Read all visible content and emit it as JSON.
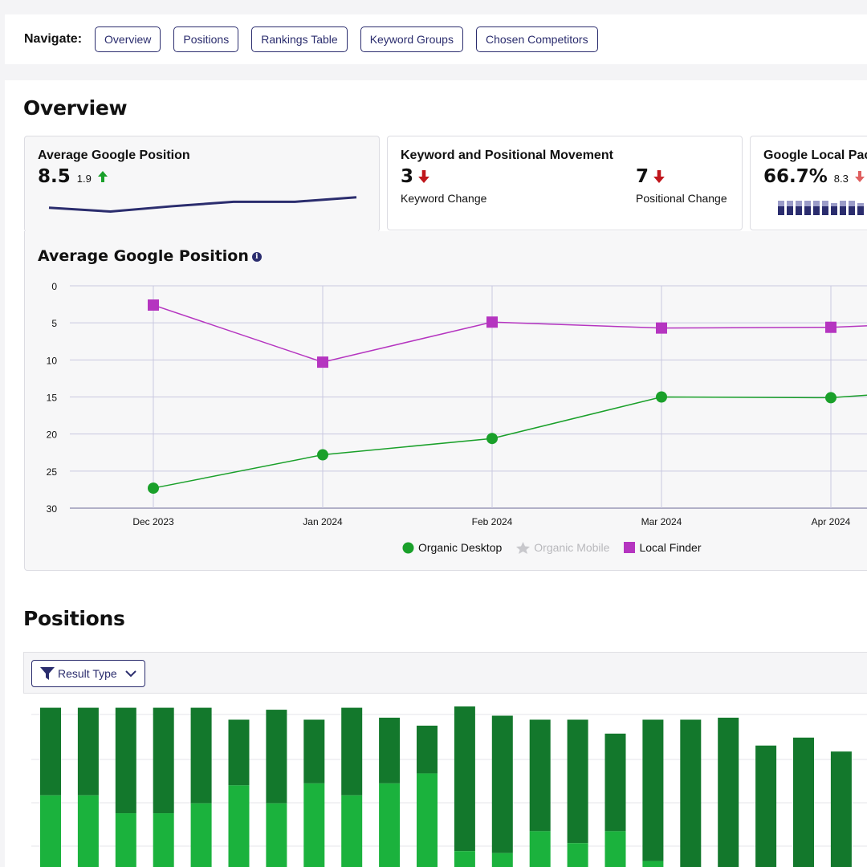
{
  "nav": {
    "label": "Navigate:",
    "items": [
      "Overview",
      "Positions",
      "Rankings Table",
      "Keyword Groups",
      "Chosen Competitors"
    ]
  },
  "overview": {
    "title": "Overview",
    "cards": {
      "avg": {
        "title": "Average Google Position",
        "value": "8.5",
        "delta": "1.9",
        "trend": "up",
        "sparkline": [
          7.8,
          8.3,
          7.6,
          7.0,
          7.0,
          6.4
        ]
      },
      "movement": {
        "title": "Keyword and Positional Movement",
        "keyword_value": "3",
        "keyword_label": "Keyword Change",
        "positional_value": "7",
        "positional_label": "Positional Change"
      },
      "local": {
        "title": "Google Local Pac",
        "value": "66.7%",
        "delta": "8.3"
      }
    }
  },
  "avg_chart": {
    "title": "Average Google Position",
    "info_icon": "info-icon",
    "legend": [
      {
        "name": "Organic Desktop",
        "color": "#1aa02a",
        "marker": "circle",
        "enabled": true
      },
      {
        "name": "Organic Mobile",
        "color": "#c8c8cc",
        "marker": "star",
        "enabled": false
      },
      {
        "name": "Local Finder",
        "color": "#b535c0",
        "marker": "square",
        "enabled": true
      }
    ]
  },
  "chart_data": {
    "type": "line",
    "x": [
      "Dec 2023",
      "Jan 2024",
      "Feb 2024",
      "Mar 2024",
      "Apr 2024"
    ],
    "ylim": [
      30,
      0
    ],
    "yticks": [
      0,
      5,
      10,
      15,
      20,
      25,
      30
    ],
    "reversed_y": true,
    "grid": true,
    "legend_position": "bottom",
    "series": [
      {
        "name": "Organic Desktop",
        "values": [
          27.3,
          22.8,
          20.6,
          15.0,
          15.1
        ]
      },
      {
        "name": "Local Finder",
        "values": [
          2.6,
          10.3,
          4.9,
          5.7,
          5.6
        ]
      }
    ]
  },
  "positions": {
    "title": "Positions",
    "filter_label": "Result Type",
    "bars": [
      [
        0.8,
        0.36
      ],
      [
        0.8,
        0.36
      ],
      [
        0.8,
        0.27
      ],
      [
        0.8,
        0.27
      ],
      [
        0.8,
        0.32
      ],
      [
        0.74,
        0.41
      ],
      [
        0.79,
        0.32
      ],
      [
        0.74,
        0.42
      ],
      [
        0.8,
        0.36
      ],
      [
        0.75,
        0.42
      ],
      [
        0.71,
        0.47
      ],
      [
        0.81,
        0.08
      ],
      [
        0.76,
        0.07
      ],
      [
        0.74,
        0.18
      ],
      [
        0.74,
        0.12
      ],
      [
        0.67,
        0.18
      ],
      [
        0.74,
        0.03
      ],
      [
        0.74,
        0.0
      ],
      [
        0.75,
        0.0
      ],
      [
        0.61,
        0.0
      ],
      [
        0.65,
        0.0
      ],
      [
        0.58,
        0.0
      ]
    ]
  },
  "colors": {
    "accent": "#2b2d6e",
    "up": "#1aa02a",
    "down": "#c0161c",
    "bar_dark": "#13782c",
    "bar_light": "#1bb23d"
  }
}
